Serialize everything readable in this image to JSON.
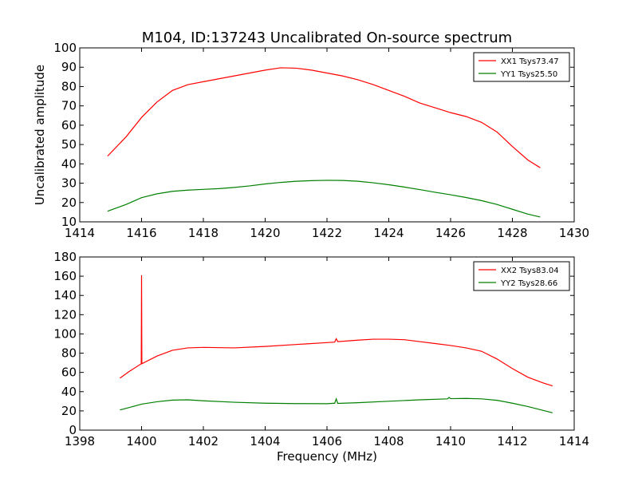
{
  "figure": {
    "title": "M104, ID:137243 Uncalibrated On-source spectrum"
  },
  "chart_data": [
    {
      "type": "line",
      "title": "M104, ID:137243 Uncalibrated On-source spectrum",
      "xlabel": "",
      "ylabel": "Uncalibrated amplitude",
      "xlim": [
        1414,
        1430
      ],
      "ylim": [
        10,
        100
      ],
      "xticks": [
        1414,
        1416,
        1418,
        1420,
        1422,
        1424,
        1426,
        1428,
        1430
      ],
      "yticks": [
        10,
        20,
        30,
        40,
        50,
        60,
        70,
        80,
        90,
        100
      ],
      "grid": false,
      "legend_position": "top-right",
      "series": [
        {
          "name": "XX1 Tsys73.47",
          "color": "#ff0000",
          "x": [
            1414.9,
            1415.5,
            1416.0,
            1416.5,
            1417.0,
            1417.5,
            1418.0,
            1418.5,
            1419.0,
            1419.5,
            1420.0,
            1420.5,
            1421.0,
            1421.5,
            1422.0,
            1422.5,
            1423.0,
            1423.5,
            1424.0,
            1424.5,
            1425.0,
            1425.5,
            1426.0,
            1426.5,
            1427.0,
            1427.5,
            1428.0,
            1428.5,
            1428.9
          ],
          "y": [
            44,
            54,
            64,
            72,
            78,
            81,
            82.5,
            84,
            85.5,
            87,
            88.5,
            89.7,
            89.5,
            88.5,
            87,
            85.5,
            83.5,
            81,
            78,
            75,
            71.5,
            69,
            66.5,
            64.5,
            61.5,
            56.5,
            49,
            42,
            38
          ]
        },
        {
          "name": "YY1 Tsys25.50",
          "color": "#008000",
          "x": [
            1414.9,
            1415.5,
            1416.0,
            1416.5,
            1417.0,
            1417.5,
            1418.0,
            1418.5,
            1419.0,
            1419.5,
            1420.0,
            1420.5,
            1421.0,
            1421.5,
            1422.0,
            1422.5,
            1423.0,
            1423.5,
            1424.0,
            1424.5,
            1425.0,
            1425.5,
            1426.0,
            1426.5,
            1427.0,
            1427.5,
            1428.0,
            1428.5,
            1428.9
          ],
          "y": [
            15.5,
            19,
            22.5,
            24.5,
            25.8,
            26.4,
            26.8,
            27.2,
            27.8,
            28.6,
            29.6,
            30.4,
            31,
            31.3,
            31.5,
            31.4,
            31,
            30.2,
            29.2,
            28,
            26.7,
            25.3,
            24,
            22.6,
            21,
            19,
            16.5,
            14,
            12.5
          ]
        }
      ]
    },
    {
      "type": "line",
      "title": "",
      "xlabel": "Frequency (MHz)",
      "ylabel": "",
      "xlim": [
        1398,
        1414
      ],
      "ylim": [
        0,
        180
      ],
      "xticks": [
        1398,
        1400,
        1402,
        1404,
        1406,
        1408,
        1410,
        1412,
        1414
      ],
      "yticks": [
        0,
        20,
        40,
        60,
        80,
        100,
        120,
        140,
        160,
        180
      ],
      "grid": false,
      "legend_position": "top-right",
      "series": [
        {
          "name": "XX2 Tsys83.04",
          "color": "#ff0000",
          "x": [
            1399.3,
            1399.6,
            1399.99,
            1400.0,
            1400.01,
            1400.5,
            1401.0,
            1401.5,
            1402.0,
            1403.0,
            1404.0,
            1405.0,
            1406.0,
            1406.25,
            1406.3,
            1406.35,
            1407.0,
            1407.5,
            1408.0,
            1408.5,
            1409.0,
            1409.5,
            1410.0,
            1410.5,
            1411.0,
            1411.5,
            1412.0,
            1412.5,
            1413.0,
            1413.3
          ],
          "y": [
            54,
            61,
            69,
            161,
            69,
            77,
            83,
            85.5,
            86,
            85.5,
            87,
            89,
            91,
            91.5,
            95,
            92,
            93.5,
            94.5,
            94.5,
            94,
            92,
            90,
            88,
            85.5,
            82,
            74,
            64,
            55,
            49,
            46
          ]
        },
        {
          "name": "YY2 Tsys28.66",
          "color": "#008000",
          "x": [
            1399.3,
            1399.6,
            1400.0,
            1400.5,
            1401.0,
            1401.5,
            1402.0,
            1403.0,
            1404.0,
            1405.0,
            1406.0,
            1406.25,
            1406.3,
            1406.35,
            1407.0,
            1408.0,
            1409.0,
            1409.9,
            1409.95,
            1410.0,
            1410.5,
            1411.0,
            1411.5,
            1412.0,
            1412.5,
            1413.0,
            1413.3
          ],
          "y": [
            21,
            23.5,
            27,
            29.5,
            31.2,
            31.5,
            30.5,
            29,
            28,
            27.6,
            27.5,
            28,
            32.5,
            27.8,
            28.5,
            30,
            31.5,
            32.5,
            34,
            32.7,
            33,
            32.5,
            31,
            28,
            24.5,
            20.5,
            18
          ]
        }
      ]
    }
  ]
}
